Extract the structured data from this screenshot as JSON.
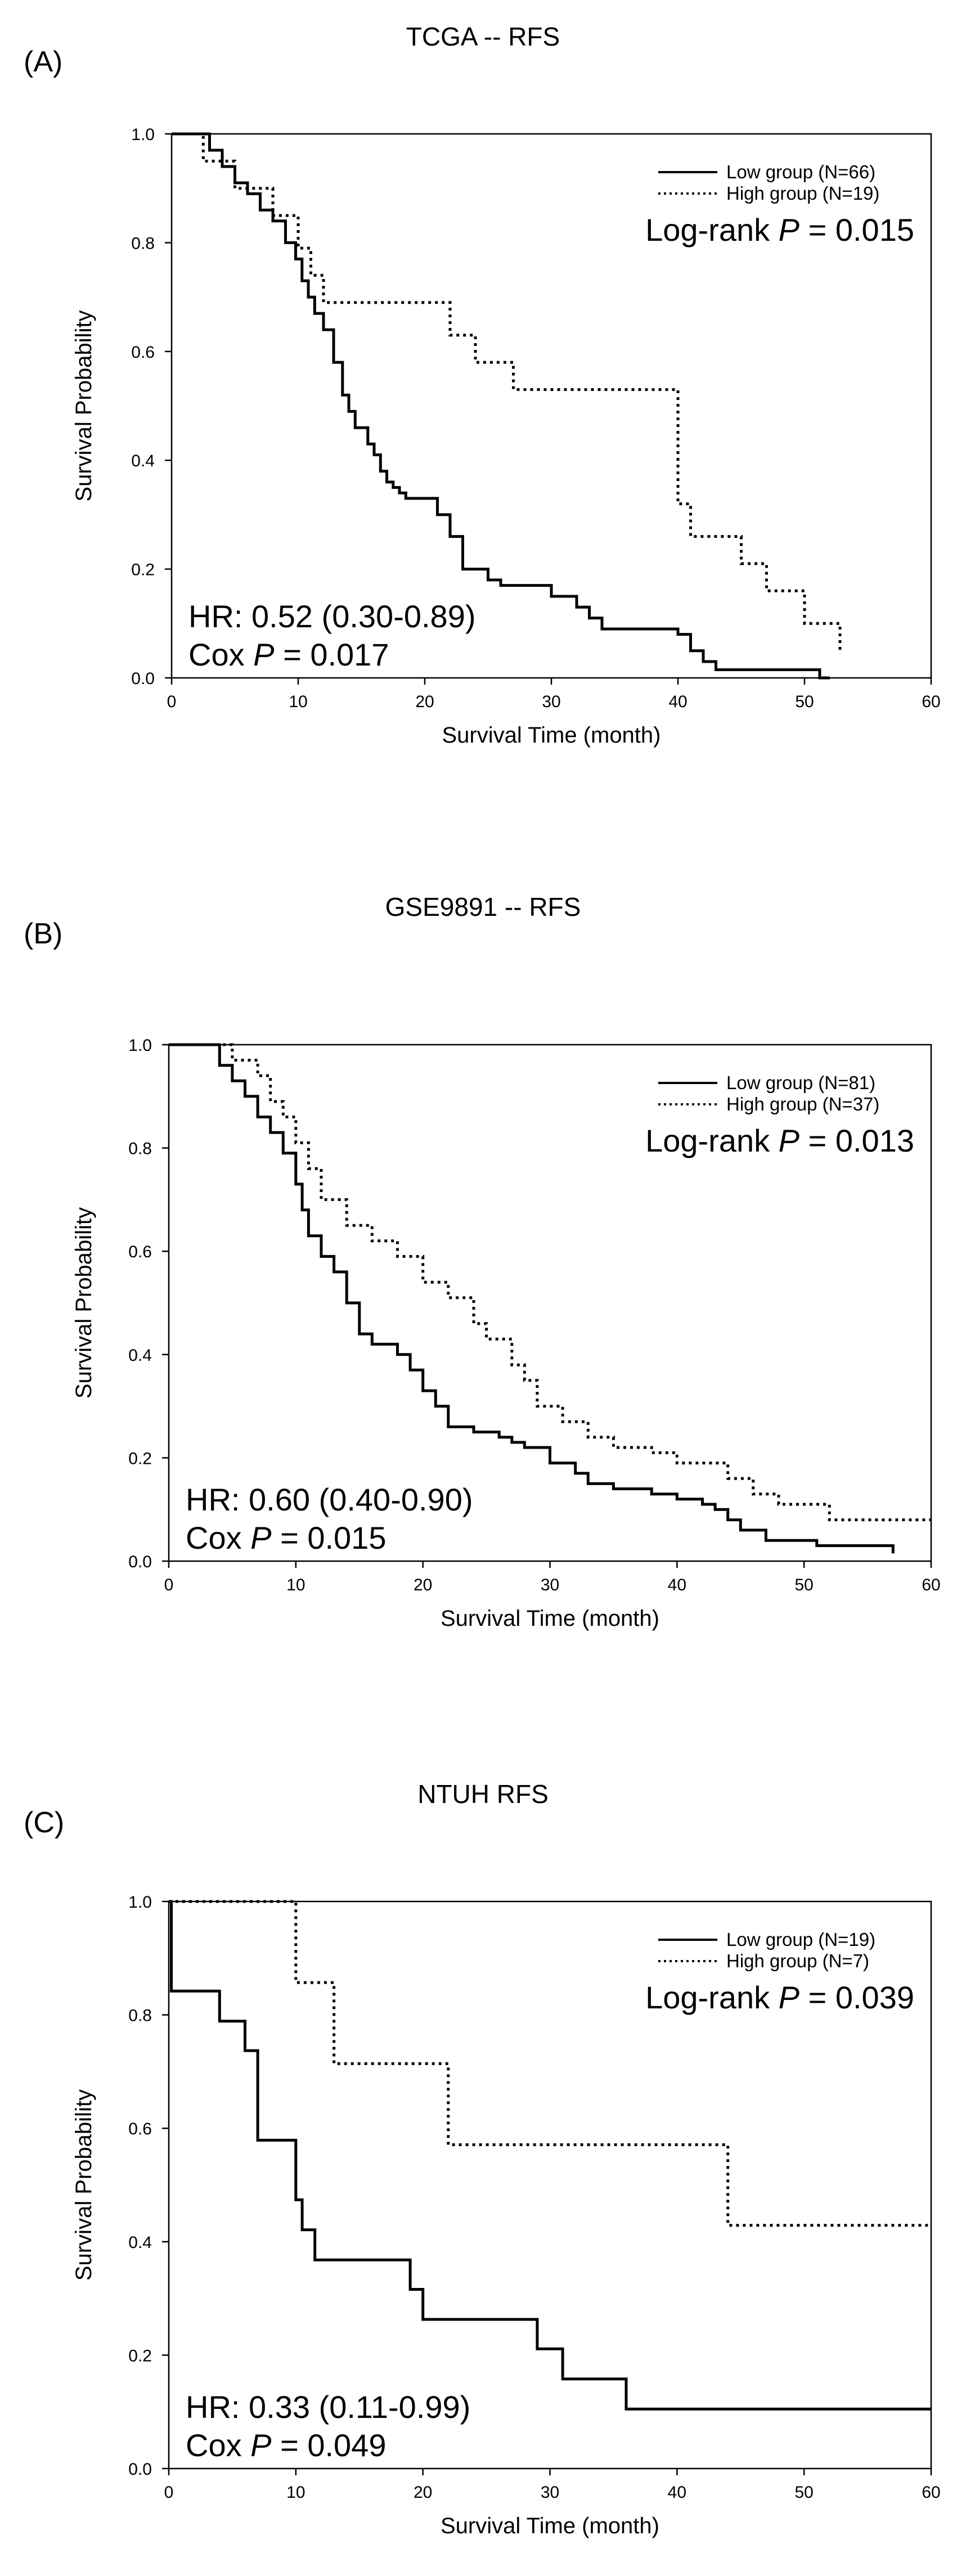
{
  "chart_data": [
    {
      "type": "line",
      "panel_label": "(A)",
      "title": "TCGA -- RFS",
      "xlabel": "Survival Time (month)",
      "ylabel": "Survival Probability",
      "xlim": [
        0,
        60
      ],
      "ylim": [
        0,
        1.0
      ],
      "xticks": [
        "0",
        "10",
        "20",
        "30",
        "40",
        "50",
        "60"
      ],
      "yticks": [
        "0.0",
        "0.2",
        "0.4",
        "0.6",
        "0.8",
        "1.0"
      ],
      "legend_location": "top-right",
      "series": [
        {
          "name": "Low group (N=66)",
          "style": "solid",
          "x": [
            0,
            3,
            4,
            5,
            6,
            7,
            8,
            9,
            9.8,
            10.3,
            10.8,
            11.3,
            12,
            12.8,
            13.5,
            14,
            14.5,
            15.5,
            16,
            16.5,
            17,
            17.5,
            18,
            18.5,
            21,
            22,
            23,
            25,
            26,
            30,
            32,
            33,
            34,
            40,
            41,
            42,
            43,
            47,
            50,
            51.2
          ],
          "y": [
            1.0,
            0.97,
            0.94,
            0.91,
            0.89,
            0.86,
            0.84,
            0.8,
            0.77,
            0.73,
            0.7,
            0.67,
            0.64,
            0.58,
            0.52,
            0.49,
            0.46,
            0.43,
            0.41,
            0.38,
            0.36,
            0.35,
            0.34,
            0.33,
            0.3,
            0.26,
            0.2,
            0.18,
            0.17,
            0.15,
            0.13,
            0.11,
            0.09,
            0.08,
            0.05,
            0.03,
            0.015,
            0.015,
            0.015,
            0.0
          ]
        },
        {
          "name": "High group (N=19)",
          "style": "dotted",
          "x": [
            0,
            2.5,
            5,
            8,
            10,
            11,
            12,
            22,
            24,
            27,
            40,
            41,
            45,
            47,
            50,
            52.8
          ],
          "y": [
            1.0,
            0.95,
            0.9,
            0.85,
            0.79,
            0.74,
            0.69,
            0.63,
            0.58,
            0.53,
            0.32,
            0.26,
            0.21,
            0.16,
            0.1,
            0.05
          ]
        }
      ],
      "end_x": [
        52,
        53
      ],
      "annotations": {
        "logrank_prefix": "Log-rank ",
        "p_italic": "P",
        "logrank_value": " = 0.015",
        "hr_text": "HR: 0.52 (0.30-0.89)",
        "cox_prefix": "Cox ",
        "cox_value": " = 0.017"
      }
    },
    {
      "type": "line",
      "panel_label": "(B)",
      "title": "GSE9891 -- RFS",
      "xlabel": "Survival Time (month)",
      "ylabel": "Survival Probability",
      "xlim": [
        0,
        60
      ],
      "ylim": [
        0,
        1.0
      ],
      "xticks": [
        "0",
        "10",
        "20",
        "30",
        "40",
        "50",
        "60"
      ],
      "yticks": [
        "0.0",
        "0.2",
        "0.4",
        "0.6",
        "0.8",
        "1.0"
      ],
      "legend_location": "top-right",
      "series": [
        {
          "name": "Low group (N=81)",
          "style": "solid",
          "x": [
            0,
            4,
            5,
            6,
            7,
            8,
            9,
            10,
            10.5,
            11,
            12,
            13,
            14,
            15,
            16,
            18,
            19,
            20,
            21,
            22,
            24,
            26,
            27,
            28,
            30,
            32,
            33,
            35,
            38,
            40,
            42,
            43,
            44,
            45,
            47,
            51,
            57
          ],
          "y": [
            1.0,
            0.96,
            0.93,
            0.9,
            0.86,
            0.83,
            0.79,
            0.73,
            0.68,
            0.63,
            0.59,
            0.56,
            0.5,
            0.44,
            0.42,
            0.4,
            0.37,
            0.33,
            0.3,
            0.26,
            0.25,
            0.24,
            0.23,
            0.22,
            0.19,
            0.17,
            0.15,
            0.14,
            0.13,
            0.12,
            0.11,
            0.1,
            0.08,
            0.06,
            0.04,
            0.03,
            0.015
          ]
        },
        {
          "name": "High group (N=37)",
          "style": "dotted",
          "x": [
            0,
            5,
            7,
            8,
            9,
            10,
            11,
            12,
            14,
            16,
            18,
            20,
            22,
            24,
            25,
            27,
            28,
            29,
            31,
            33,
            35,
            38,
            40,
            44,
            46,
            48,
            52
          ],
          "y": [
            1.0,
            0.97,
            0.94,
            0.89,
            0.86,
            0.81,
            0.76,
            0.7,
            0.65,
            0.62,
            0.59,
            0.54,
            0.51,
            0.46,
            0.43,
            0.38,
            0.35,
            0.3,
            0.27,
            0.24,
            0.22,
            0.21,
            0.19,
            0.16,
            0.13,
            0.11,
            0.08
          ]
        }
      ],
      "end_x": [
        57,
        60
      ],
      "annotations": {
        "logrank_prefix": "Log-rank ",
        "p_italic": "P",
        "logrank_value": " = 0.013",
        "hr_text": "HR: 0.60 (0.40-0.90)",
        "cox_prefix": "Cox ",
        "cox_value": " = 0.015"
      }
    },
    {
      "type": "line",
      "panel_label": "(C)",
      "title": "NTUH RFS",
      "xlabel": "Survival Time (month)",
      "ylabel": "Survival Probability",
      "xlim": [
        0,
        60
      ],
      "ylim": [
        0,
        1.0
      ],
      "xticks": [
        "0",
        "10",
        "20",
        "30",
        "40",
        "50",
        "60"
      ],
      "yticks": [
        "0.0",
        "0.2",
        "0.4",
        "0.6",
        "0.8",
        "1.0"
      ],
      "legend_location": "top-right",
      "series": [
        {
          "name": "Low group (N=19)",
          "style": "solid",
          "x": [
            0,
            0.2,
            4,
            6,
            7,
            10,
            10.5,
            11.5,
            19,
            20,
            29,
            31,
            36
          ],
          "y": [
            1.0,
            0.842,
            0.789,
            0.737,
            0.579,
            0.474,
            0.421,
            0.368,
            0.316,
            0.263,
            0.211,
            0.158,
            0.105
          ]
        },
        {
          "name": "High group (N=7)",
          "style": "dotted",
          "x": [
            0,
            10,
            13,
            22,
            44
          ],
          "y": [
            1.0,
            0.857,
            0.714,
            0.571,
            0.429
          ]
        }
      ],
      "end_x": [
        60,
        60
      ],
      "annotations": {
        "logrank_prefix": "Log-rank ",
        "p_italic": "P",
        "logrank_value": " = 0.039",
        "hr_text": "HR: 0.33 (0.11-0.99)",
        "cox_prefix": "Cox ",
        "cox_value": " = 0.049"
      }
    }
  ]
}
